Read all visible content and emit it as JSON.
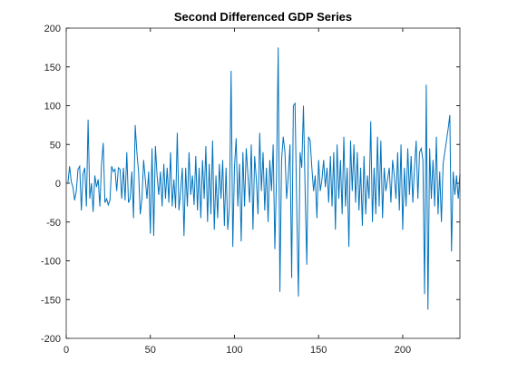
{
  "chart_data": {
    "type": "line",
    "title": "Second Differenced GDP Series",
    "x": [
      1,
      2,
      3,
      4,
      5,
      6,
      7,
      8,
      9,
      10,
      11,
      12,
      13,
      14,
      15,
      16,
      17,
      18,
      19,
      20,
      21,
      22,
      23,
      24,
      25,
      26,
      27,
      28,
      29,
      30,
      31,
      32,
      33,
      34,
      35,
      36,
      37,
      38,
      39,
      40,
      41,
      42,
      43,
      44,
      45,
      46,
      47,
      48,
      49,
      50,
      51,
      52,
      53,
      54,
      55,
      56,
      57,
      58,
      59,
      60,
      61,
      62,
      63,
      64,
      65,
      66,
      67,
      68,
      69,
      70,
      71,
      72,
      73,
      74,
      75,
      76,
      77,
      78,
      79,
      80,
      81,
      82,
      83,
      84,
      85,
      86,
      87,
      88,
      89,
      90,
      91,
      92,
      93,
      94,
      95,
      96,
      97,
      98,
      99,
      100,
      101,
      102,
      103,
      104,
      105,
      106,
      107,
      108,
      109,
      110,
      111,
      112,
      113,
      114,
      115,
      116,
      117,
      118,
      119,
      120,
      121,
      122,
      123,
      124,
      125,
      126,
      127,
      128,
      129,
      130,
      131,
      132,
      133,
      134,
      135,
      136,
      137,
      138,
      139,
      140,
      141,
      142,
      143,
      144,
      145,
      146,
      147,
      148,
      149,
      150,
      151,
      152,
      153,
      154,
      155,
      156,
      157,
      158,
      159,
      160,
      161,
      162,
      163,
      164,
      165,
      166,
      167,
      168,
      169,
      170,
      171,
      172,
      173,
      174,
      175,
      176,
      177,
      178,
      179,
      180,
      181,
      182,
      183,
      184,
      185,
      186,
      187,
      188,
      189,
      190,
      191,
      192,
      193,
      194,
      195,
      196,
      197,
      198,
      199,
      200,
      201,
      202,
      203,
      204,
      205,
      206,
      207,
      208,
      209,
      210,
      211,
      212,
      213,
      214,
      215,
      216,
      217,
      218,
      219,
      220,
      221,
      222,
      223,
      224,
      225,
      226,
      227,
      228,
      229,
      230,
      231,
      232,
      233,
      234
    ],
    "series": [
      {
        "color": "#0072bd",
        "values": [
          0,
          22,
          2,
          -5,
          -22,
          -10,
          18,
          22,
          -35,
          12,
          20,
          -30,
          82,
          -20,
          0,
          -37,
          10,
          -5,
          5,
          -30,
          25,
          52,
          -25,
          -20,
          -28,
          -22,
          22,
          15,
          18,
          -10,
          20,
          18,
          -20,
          20,
          -22,
          40,
          -25,
          -20,
          15,
          -45,
          75,
          40,
          15,
          -40,
          -20,
          30,
          5,
          -20,
          15,
          -65,
          45,
          -68,
          48,
          10,
          -15,
          15,
          -30,
          25,
          -20,
          20,
          -25,
          40,
          -30,
          5,
          -32,
          65,
          -35,
          -10,
          20,
          -68,
          20,
          -30,
          40,
          -15,
          10,
          -28,
          35,
          -35,
          20,
          -45,
          30,
          -20,
          48,
          -50,
          25,
          -40,
          55,
          -60,
          10,
          -45,
          25,
          -20,
          30,
          -55,
          20,
          -60,
          -30,
          145,
          -82,
          20,
          58,
          -30,
          25,
          -75,
          40,
          -30,
          45,
          10,
          -25,
          50,
          -60,
          35,
          5,
          -40,
          65,
          -10,
          40,
          -35,
          20,
          -50,
          30,
          -10,
          50,
          -85,
          10,
          175,
          -140,
          30,
          60,
          40,
          -20,
          10,
          50,
          -122,
          100,
          103,
          -30,
          -146,
          40,
          20,
          100,
          -10,
          -105,
          60,
          55,
          20,
          -10,
          10,
          -45,
          30,
          -10,
          5,
          30,
          -5,
          20,
          -25,
          35,
          -30,
          40,
          -60,
          50,
          -20,
          30,
          -40,
          60,
          -30,
          20,
          -82,
          55,
          -10,
          50,
          -25,
          40,
          -35,
          20,
          -55,
          35,
          -40,
          10,
          -20,
          80,
          -50,
          20,
          -40,
          60,
          -30,
          55,
          -45,
          20,
          -10,
          5,
          20,
          -25,
          30,
          10,
          -20,
          40,
          -35,
          50,
          -60,
          20,
          -30,
          45,
          -15,
          35,
          -25,
          20,
          55,
          -20,
          40,
          45,
          30,
          -143,
          127,
          -163,
          45,
          -20,
          30,
          -30,
          60,
          -40,
          15,
          -50,
          25,
          40,
          55,
          70,
          88,
          -88,
          15,
          -15,
          10,
          -20,
          12
        ]
      }
    ],
    "xlim": [
      0,
      234
    ],
    "ylim": [
      -200,
      200
    ],
    "xticks": [
      0,
      50,
      100,
      150,
      200
    ],
    "yticks": [
      -200,
      -150,
      -100,
      -50,
      0,
      50,
      100,
      150,
      200
    ]
  }
}
